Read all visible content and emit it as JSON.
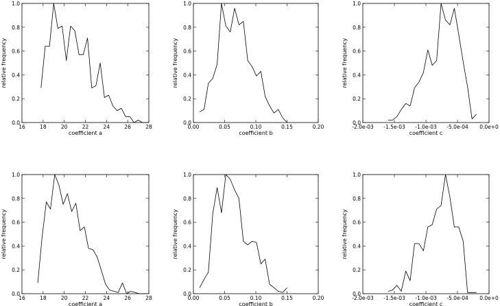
{
  "chart_data": [
    {
      "type": "line",
      "xlabel": "coefficient a",
      "ylabel": "relative frequency",
      "xlim": [
        16,
        28
      ],
      "ylim": [
        0,
        1.0
      ],
      "xticks": [
        16,
        18,
        20,
        22,
        24,
        26,
        28
      ],
      "xtick_labels": [
        "16",
        "18",
        "20",
        "22",
        "24",
        "26",
        "28"
      ],
      "yticks": [
        0,
        0.2,
        0.4,
        0.6,
        0.8,
        1.0
      ],
      "ytick_labels": [
        "0.0",
        "0.2",
        "0.4",
        "0.6",
        "0.8",
        "1.0"
      ],
      "x": [
        17.8,
        18.2,
        18.6,
        19.0,
        19.4,
        19.8,
        20.2,
        20.6,
        21.0,
        21.4,
        21.8,
        22.2,
        22.6,
        23.0,
        23.4,
        23.8,
        24.2,
        24.6,
        25.0,
        25.4,
        25.8,
        26.2,
        26.6,
        27.0,
        27.4,
        27.8
      ],
      "y": [
        0.29,
        0.64,
        0.64,
        1.0,
        0.79,
        0.81,
        0.52,
        0.81,
        0.77,
        0.57,
        0.57,
        0.71,
        0.29,
        0.31,
        0.5,
        0.21,
        0.23,
        0.14,
        0.1,
        0.12,
        0.05,
        0.05,
        0.0,
        0.02,
        0.0,
        0.0
      ]
    },
    {
      "type": "line",
      "xlabel": "coefficient b",
      "ylabel": "relative frequency",
      "xlim": [
        0,
        0.2
      ],
      "ylim": [
        0,
        1.0
      ],
      "xticks": [
        0,
        0.05,
        0.1,
        0.15,
        0.2
      ],
      "xtick_labels": [
        "0.00",
        "0.05",
        "0.10",
        "0.15",
        "0.20"
      ],
      "yticks": [
        0,
        0.2,
        0.4,
        0.6,
        0.8,
        1.0
      ],
      "ytick_labels": [
        "0.0",
        "0.2",
        "0.4",
        "0.6",
        "0.8",
        "1.0"
      ],
      "x": [
        0.01,
        0.017,
        0.024,
        0.031,
        0.038,
        0.045,
        0.052,
        0.059,
        0.066,
        0.073,
        0.08,
        0.087,
        0.094,
        0.101,
        0.108,
        0.115,
        0.122,
        0.129,
        0.136,
        0.143,
        0.15
      ],
      "y": [
        0.09,
        0.11,
        0.33,
        0.37,
        0.49,
        1.0,
        0.81,
        0.76,
        0.96,
        0.82,
        0.85,
        0.52,
        0.47,
        0.39,
        0.43,
        0.22,
        0.14,
        0.08,
        0.11,
        0.04,
        0.0
      ]
    },
    {
      "type": "line",
      "xlabel": "coefficient c",
      "ylabel": "relative frequency",
      "xlim": [
        -0.002,
        0.0
      ],
      "ylim": [
        0,
        1.0
      ],
      "xticks": [
        -0.002,
        -0.0015,
        -0.001,
        -0.0005,
        0.0
      ],
      "xtick_labels": [
        "-2.0e-03",
        "-1.5e-03",
        "-1.0e-03",
        "-5.0e-04",
        "0.0e+0"
      ],
      "yticks": [
        0,
        0.2,
        0.4,
        0.6,
        0.8,
        1.0
      ],
      "ytick_labels": [
        "0.0",
        "0.2",
        "0.4",
        "0.6",
        "0.8",
        "1.0"
      ],
      "x": [
        -0.0016,
        -0.00153,
        -0.00146,
        -0.00139,
        -0.00132,
        -0.00125,
        -0.00118,
        -0.00111,
        -0.00104,
        -0.00097,
        -0.0009,
        -0.00083,
        -0.00076,
        -0.00069,
        -0.00062,
        -0.00055,
        -0.00048,
        -0.00041,
        -0.00034,
        -0.00027,
        -0.0002
      ],
      "y": [
        0.02,
        0.02,
        0.05,
        0.11,
        0.16,
        0.14,
        0.29,
        0.34,
        0.42,
        0.61,
        0.48,
        0.52,
        1.0,
        0.86,
        0.82,
        0.96,
        0.74,
        0.51,
        0.3,
        0.03,
        0.07
      ]
    },
    {
      "type": "line",
      "xlabel": "coefficient a",
      "ylabel": "relative frequency",
      "xlim": [
        16,
        28
      ],
      "ylim": [
        0,
        1.0
      ],
      "xticks": [
        16,
        18,
        20,
        22,
        24,
        26,
        28
      ],
      "xtick_labels": [
        "16",
        "18",
        "20",
        "22",
        "24",
        "26",
        "28"
      ],
      "yticks": [
        0,
        0.2,
        0.4,
        0.6,
        0.8,
        1.0
      ],
      "ytick_labels": [
        "0.0",
        "0.2",
        "0.4",
        "0.6",
        "0.8",
        "1.0"
      ],
      "x": [
        17.5,
        17.9,
        18.3,
        18.7,
        19.1,
        19.5,
        19.9,
        20.3,
        20.7,
        21.1,
        21.5,
        21.9,
        22.3,
        22.7,
        23.1,
        23.5,
        23.9,
        24.3,
        24.7,
        25.1,
        25.5,
        25.9,
        26.3,
        26.7,
        27.1,
        27.5,
        27.9
      ],
      "y": [
        0.09,
        0.47,
        0.77,
        0.71,
        1.0,
        0.91,
        0.75,
        0.84,
        0.69,
        0.76,
        0.53,
        0.56,
        0.38,
        0.37,
        0.31,
        0.2,
        0.08,
        0.03,
        0.02,
        0.01,
        0.09,
        0.0,
        0.02,
        0.01,
        0.0,
        0.0,
        0.0
      ]
    },
    {
      "type": "line",
      "xlabel": "coefficient b",
      "ylabel": "relative frequency",
      "xlim": [
        0,
        0.2
      ],
      "ylim": [
        0,
        1.0
      ],
      "xticks": [
        0,
        0.05,
        0.1,
        0.15,
        0.2
      ],
      "xtick_labels": [
        "0.00",
        "0.05",
        "0.10",
        "0.15",
        "0.20"
      ],
      "yticks": [
        0,
        0.2,
        0.4,
        0.6,
        0.8,
        1.0
      ],
      "ytick_labels": [
        "0.0",
        "0.2",
        "0.4",
        "0.6",
        "0.8",
        "1.0"
      ],
      "x": [
        0.01,
        0.017,
        0.024,
        0.031,
        0.038,
        0.045,
        0.052,
        0.059,
        0.066,
        0.073,
        0.08,
        0.087,
        0.094,
        0.101,
        0.108,
        0.115,
        0.122,
        0.129,
        0.136,
        0.143,
        0.15
      ],
      "y": [
        0.05,
        0.12,
        0.18,
        0.67,
        0.89,
        0.68,
        1.0,
        0.96,
        0.87,
        0.8,
        0.44,
        0.41,
        0.44,
        0.43,
        0.25,
        0.29,
        0.08,
        0.05,
        0.02,
        0.01,
        0.05
      ]
    },
    {
      "type": "line",
      "xlabel": "coefficient c",
      "ylabel": "relative frequency",
      "xlim": [
        -0.002,
        0.0
      ],
      "ylim": [
        0,
        1.0
      ],
      "xticks": [
        -0.002,
        -0.0015,
        -0.001,
        -0.0005,
        0.0
      ],
      "xtick_labels": [
        "-2.0e-03",
        "-1.5e-03",
        "-1.0e-03",
        "-5.0e-04",
        "0.0e+0"
      ],
      "yticks": [
        0,
        0.2,
        0.4,
        0.6,
        0.8,
        1.0
      ],
      "ytick_labels": [
        "0.0",
        "0.2",
        "0.4",
        "0.6",
        "0.8",
        "1.0"
      ],
      "x": [
        -0.0016,
        -0.00153,
        -0.00146,
        -0.00139,
        -0.00132,
        -0.00125,
        -0.00118,
        -0.00111,
        -0.00104,
        -0.00097,
        -0.0009,
        -0.00083,
        -0.00076,
        -0.00069,
        -0.00062,
        -0.00055,
        -0.00048,
        -0.00041,
        -0.00034,
        -0.00027,
        -0.0002
      ],
      "y": [
        0.02,
        0.03,
        0.07,
        0.02,
        0.19,
        0.11,
        0.42,
        0.42,
        0.36,
        0.56,
        0.58,
        0.71,
        0.74,
        1.0,
        0.81,
        0.56,
        0.56,
        0.44,
        0.01,
        0.01,
        0.01
      ]
    }
  ]
}
